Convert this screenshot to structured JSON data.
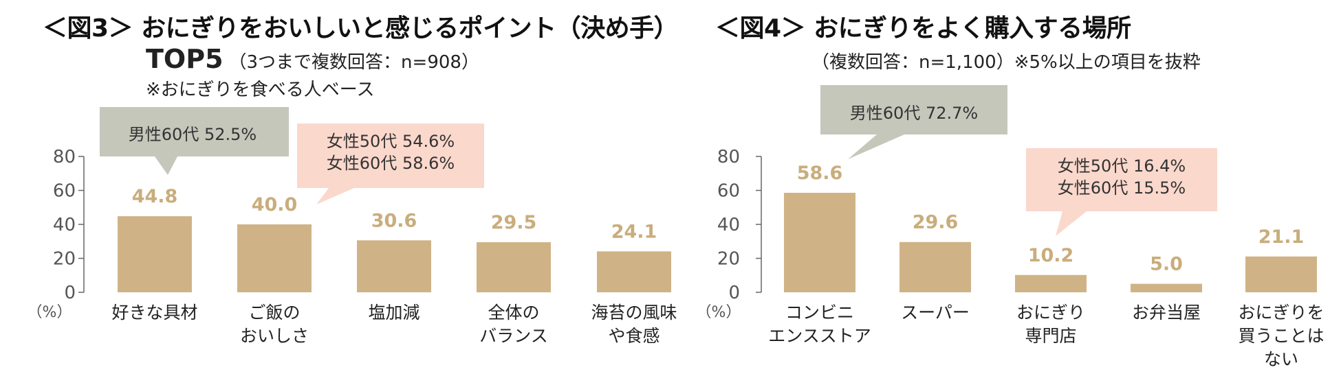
{
  "fig3": {
    "title": "＜図3＞ おにぎりをおいしいと感じるポイント（決め手）",
    "subtitle_top": "TOP5",
    "subtitle_note": "（3つまで複数回答：n=908）",
    "note": "※おにぎりを食べる人ベース"
  },
  "fig4": {
    "title": "＜図4＞ おにぎりをよく購入する場所",
    "subtitle_note": "（複数回答：n=1,100）※5%以上の項目を抜粋"
  },
  "colors": {
    "bar": "#cfb386",
    "value_label": "#c9ad7c",
    "axis": "#666666",
    "callout_gray": "#c4c7ba",
    "callout_pink": "#fbd8cc"
  },
  "chart_data": [
    {
      "id": "fig3",
      "type": "bar",
      "title": "＜図3＞ おにぎりをおいしいと感じるポイント（決め手）",
      "unit_label": "（%）",
      "ylim": [
        0,
        80
      ],
      "yticks": [
        "0",
        "20",
        "40",
        "60",
        "80"
      ],
      "categories": [
        [
          "好きな具材"
        ],
        [
          "ご飯の",
          "おいしさ"
        ],
        [
          "塩加減"
        ],
        [
          "全体の",
          "バランス"
        ],
        [
          "海苔の風味",
          "や食感"
        ]
      ],
      "values": [
        44.8,
        40.0,
        30.6,
        29.5,
        24.1
      ],
      "value_labels": [
        "44.8",
        "40.0",
        "30.6",
        "29.5",
        "24.1"
      ],
      "callouts": [
        {
          "style": "gray",
          "target_index": 0,
          "lines": [
            "男性60代  52.5%"
          ]
        },
        {
          "style": "pink",
          "target_index": 1,
          "lines": [
            "女性50代  54.6%",
            "女性60代  58.6%"
          ]
        }
      ]
    },
    {
      "id": "fig4",
      "type": "bar",
      "title": "＜図4＞ おにぎりをよく購入する場所",
      "unit_label": "（%）",
      "ylim": [
        0,
        80
      ],
      "yticks": [
        "0",
        "20",
        "40",
        "60",
        "80"
      ],
      "categories": [
        [
          "コンビニ",
          "エンスストア"
        ],
        [
          "スーパー"
        ],
        [
          "おにぎり",
          "専門店"
        ],
        [
          "お弁当屋"
        ],
        [
          "おにぎりを",
          "買うことは",
          "ない"
        ]
      ],
      "values": [
        58.6,
        29.6,
        10.2,
        5.0,
        21.1
      ],
      "value_labels": [
        "58.6",
        "29.6",
        "10.2",
        "5.0",
        "21.1"
      ],
      "callouts": [
        {
          "style": "gray",
          "target_index": 0,
          "lines": [
            "男性60代  72.7%"
          ]
        },
        {
          "style": "pink",
          "target_index": 2,
          "lines": [
            "女性50代  16.4%",
            "女性60代  15.5%"
          ]
        }
      ]
    }
  ]
}
